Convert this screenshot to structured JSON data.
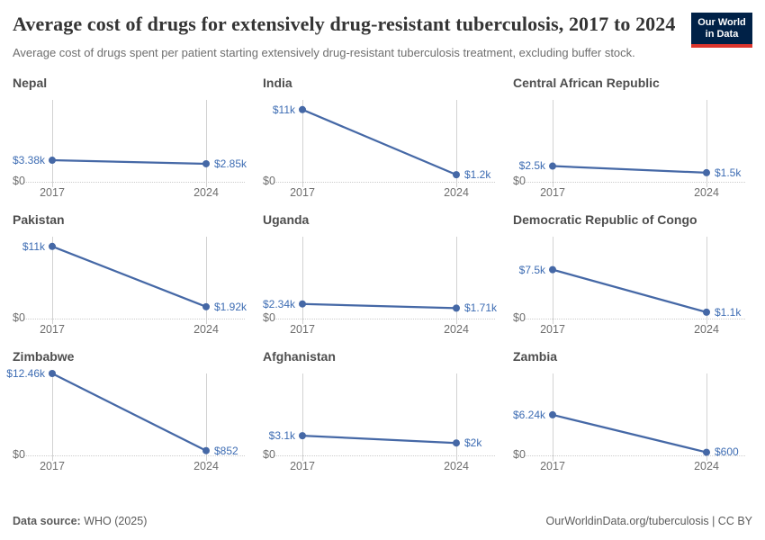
{
  "header": {
    "title": "Average cost of drugs for extensively drug-resistant tuberculosis, 2017 to 2024",
    "subtitle": "Average cost of drugs spent per patient starting extensively drug-resistant tuberculosis treatment, excluding buffer stock.",
    "logo": {
      "line1": "Our World",
      "line2": "in Data"
    }
  },
  "chart_data": {
    "type": "line",
    "x": [
      2017,
      2024
    ],
    "x_labels": [
      "2017",
      "2024"
    ],
    "y_domain": [
      0,
      12460
    ],
    "zero_label": "$0",
    "grid": "baseline-dotted, vertical-year-rules",
    "legend_position": "none",
    "facets": [
      {
        "country": "Nepal",
        "values": [
          3380,
          2850
        ],
        "labels": [
          "$3.38k",
          "$2.85k"
        ]
      },
      {
        "country": "India",
        "values": [
          11000,
          1200
        ],
        "labels": [
          "$11k",
          "$1.2k"
        ]
      },
      {
        "country": "Central African Republic",
        "values": [
          2500,
          1500
        ],
        "labels": [
          "$2.5k",
          "$1.5k"
        ]
      },
      {
        "country": "Pakistan",
        "values": [
          11000,
          1920
        ],
        "labels": [
          "$11k",
          "$1.92k"
        ]
      },
      {
        "country": "Uganda",
        "values": [
          2340,
          1710
        ],
        "labels": [
          "$2.34k",
          "$1.71k"
        ]
      },
      {
        "country": "Democratic Republic of Congo",
        "values": [
          7500,
          1100
        ],
        "labels": [
          "$7.5k",
          "$1.1k"
        ]
      },
      {
        "country": "Zimbabwe",
        "values": [
          12460,
          852
        ],
        "labels": [
          "$12.46k",
          "$852"
        ]
      },
      {
        "country": "Afghanistan",
        "values": [
          3100,
          2000
        ],
        "labels": [
          "$3.1k",
          "$2k"
        ]
      },
      {
        "country": "Zambia",
        "values": [
          6240,
          600
        ],
        "labels": [
          "$6.24k",
          "$600"
        ]
      }
    ]
  },
  "footer": {
    "source_label": "Data source:",
    "source_value": " WHO (2025)",
    "right_text": "OurWorldinData.org/tuberculosis | CC BY"
  },
  "colors": {
    "line": "#4568a6",
    "label": "#3d6cb3",
    "grid": "#d2d2d2",
    "accent_red": "#dc352d",
    "logo_bg": "#002147"
  }
}
